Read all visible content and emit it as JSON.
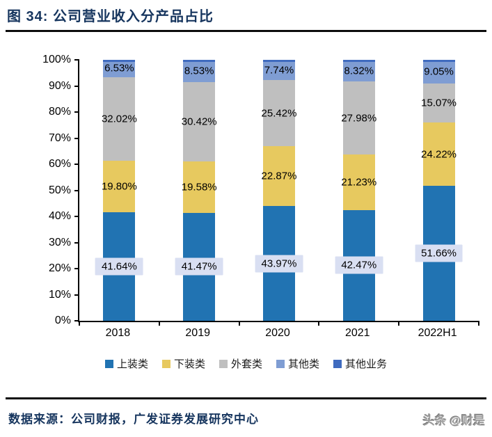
{
  "page": {
    "title": "图 34: 公司营业收入分产品占比",
    "footer": {
      "source_text": "数据来源：公司财报，广发证券发展研究中心",
      "watermark": "头条 @财是"
    }
  },
  "colors": {
    "title_navy": "#16355E",
    "rule_black": "#0d0d0d",
    "axis_black": "#000000",
    "data_label_highlight_bg": "#D9DFF2"
  },
  "chart_data": {
    "type": "bar",
    "subtype": "stacked-100-percent",
    "title": "公司营业收入分产品占比",
    "categories": [
      "2018",
      "2019",
      "2020",
      "2021",
      "2022H1"
    ],
    "series": [
      {
        "name": "上装类",
        "color": "#2173B2",
        "values": [
          41.64,
          41.47,
          43.97,
          42.47,
          51.66
        ],
        "labels_highlighted": true
      },
      {
        "name": "下装类",
        "color": "#E7C95F",
        "values": [
          19.8,
          19.58,
          22.87,
          21.23,
          24.22
        ],
        "labels_highlighted": false
      },
      {
        "name": "外套类",
        "color": "#BFBFBF",
        "values": [
          32.02,
          30.42,
          25.42,
          27.98,
          15.07
        ],
        "labels_highlighted": false
      },
      {
        "name": "其他类",
        "color": "#7F9DD3",
        "values": [
          6.53,
          8.53,
          7.74,
          8.32,
          9.05
        ],
        "labels_highlighted": false
      },
      {
        "name": "其他业务",
        "color": "#3F6BBF",
        "values": [
          0,
          0,
          0,
          0,
          0
        ],
        "labels_highlighted": false
      }
    ],
    "y_ticks": [
      "100%",
      "90%",
      "80%",
      "70%",
      "60%",
      "50%",
      "40%",
      "30%",
      "20%",
      "10%",
      "0%"
    ],
    "ylim": [
      0,
      100
    ],
    "grid": false,
    "legend_position": "bottom",
    "data_label_format": "0.00%"
  }
}
